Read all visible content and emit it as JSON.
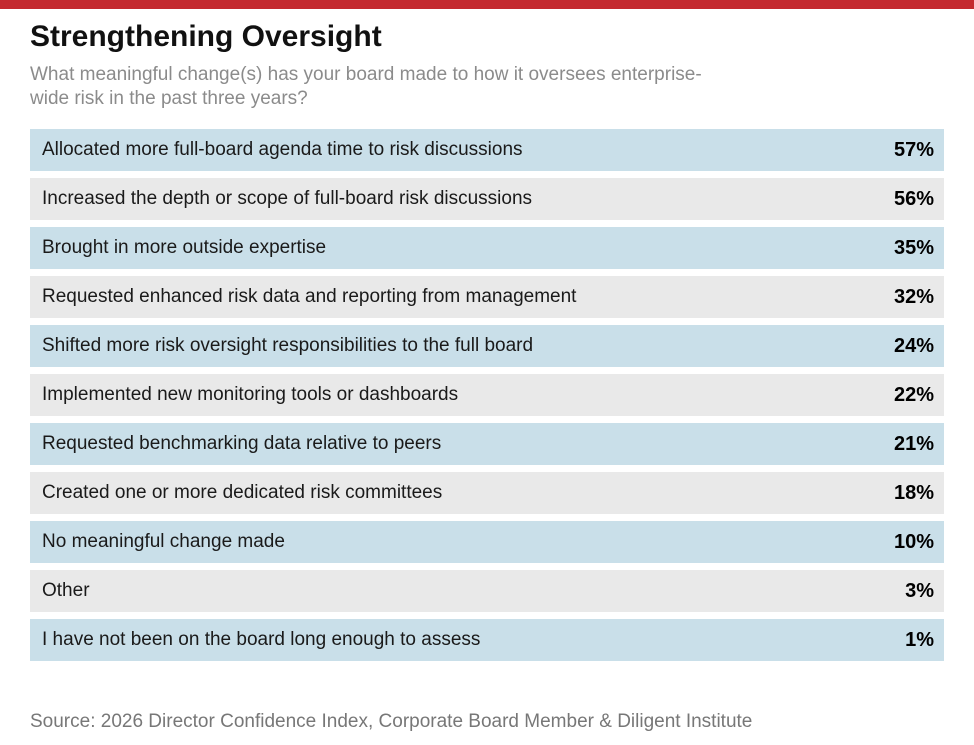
{
  "page": {
    "title": "Strengthening Oversight",
    "subtitle": "What meaningful change(s) has your board made to how it oversees enterprise-wide risk in the past three years?",
    "source": "Source: 2026 Director Confidence Index, Corporate Board Member & Diligent Institute"
  },
  "colors": {
    "accent_red": "#c4292f",
    "row_blue": "#c9dfe9",
    "row_gray": "#e9e9e9",
    "subtitle_gray": "#8b8b8b",
    "source_gray": "#777777"
  },
  "chart_data": {
    "type": "table",
    "title": "Strengthening Oversight",
    "subtitle": "What meaningful change(s) has your board made to how it oversees enterprise-wide risk in the past three years?",
    "categories": [
      "Allocated more full-board agenda time to risk discussions",
      "Increased the depth or scope of full-board risk discussions",
      "Brought in more outside expertise",
      "Requested enhanced risk data and reporting from management",
      "Shifted more risk oversight responsibilities to the full board",
      "Implemented new monitoring tools or dashboards",
      "Requested benchmarking data relative to peers",
      "Created one or more dedicated risk committees",
      "No meaningful change made",
      "Other",
      "I have not been on the board long enough to assess"
    ],
    "values": [
      57,
      56,
      35,
      32,
      24,
      22,
      21,
      18,
      10,
      3,
      1
    ],
    "unit": "%",
    "value_range": [
      0,
      100
    ],
    "layout": "ranked list, alternating blue/gray row shading, values right-aligned",
    "source": "Source: 2026 Director Confidence Index, Corporate Board Member & Diligent Institute"
  }
}
